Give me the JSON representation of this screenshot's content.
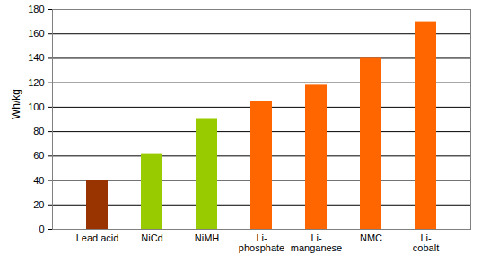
{
  "chart_data": {
    "type": "bar",
    "y_label": "Wh/kg",
    "categories": [
      "Lead acid",
      "NiCd",
      "NiMH",
      "Li-\nphosphate",
      "Li-\nmanganese",
      "NMC",
      "Li-\ncobalt"
    ],
    "values": [
      40,
      62,
      90,
      105,
      118,
      140,
      170
    ],
    "colors": [
      "#993300",
      "#99cc00",
      "#99cc00",
      "#ff6600",
      "#ff6600",
      "#ff6600",
      "#ff6600"
    ],
    "ylim": [
      0,
      180
    ],
    "yticks": [
      0,
      20,
      40,
      60,
      80,
      100,
      120,
      140,
      160,
      180
    ],
    "grid": true
  }
}
